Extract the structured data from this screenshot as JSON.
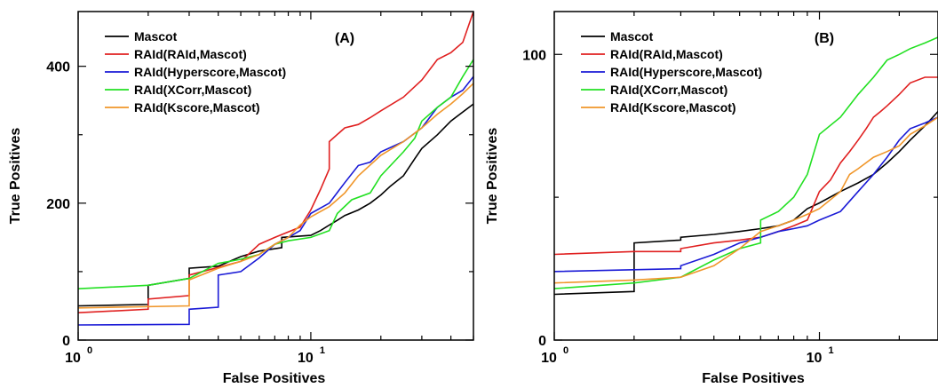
{
  "chart_data": [
    {
      "type": "line",
      "panel_label": "(A)",
      "xlabel": "False Positives",
      "ylabel": "True Positives",
      "xscale": "log",
      "xlim": [
        1,
        50
      ],
      "ylim": [
        0,
        480
      ],
      "xticks": [
        {
          "value": 1,
          "base": "10",
          "exp": "0"
        },
        {
          "value": 10,
          "base": "10",
          "exp": "1"
        }
      ],
      "yticks": [
        {
          "value": 0,
          "label": "0"
        },
        {
          "value": 200,
          "label": "200"
        },
        {
          "value": 400,
          "label": "400"
        }
      ],
      "legend_position": "top-left",
      "series": [
        {
          "name": "Mascot",
          "color": "#000000",
          "x": [
            1,
            2,
            2,
            3,
            3,
            4,
            5,
            6,
            7.5,
            7.5,
            10,
            11,
            12,
            13,
            14,
            16,
            18,
            20,
            22,
            25,
            28,
            30,
            35,
            40,
            50
          ],
          "y": [
            50,
            52,
            80,
            90,
            105,
            108,
            122,
            130,
            135,
            150,
            153,
            160,
            168,
            175,
            182,
            190,
            200,
            212,
            225,
            240,
            265,
            280,
            300,
            320,
            345
          ]
        },
        {
          "name": "RAId(RAId,Mascot)",
          "color": "#e02020",
          "x": [
            1,
            2,
            2,
            3,
            3,
            5,
            6,
            7,
            9,
            10,
            11,
            12,
            12,
            14,
            16,
            18,
            20,
            25,
            30,
            35,
            40,
            45,
            50
          ],
          "y": [
            40,
            45,
            60,
            65,
            95,
            115,
            140,
            150,
            165,
            190,
            220,
            250,
            290,
            310,
            315,
            325,
            335,
            355,
            380,
            410,
            420,
            435,
            480
          ]
        },
        {
          "name": "RAId(Hyperscore,Mascot)",
          "color": "#1a1ad6",
          "x": [
            1,
            3,
            3,
            4,
            4,
            5,
            6,
            7,
            8,
            9,
            10,
            12,
            14,
            16,
            18,
            20,
            25,
            30,
            35,
            40,
            45,
            50
          ],
          "y": [
            22,
            23,
            45,
            48,
            95,
            100,
            120,
            140,
            150,
            160,
            185,
            200,
            230,
            255,
            260,
            275,
            290,
            310,
            340,
            355,
            365,
            385
          ]
        },
        {
          "name": "RAId(XCorr,Mascot)",
          "color": "#22e022",
          "x": [
            1,
            2,
            3,
            4,
            5,
            6,
            7,
            8,
            10,
            12,
            13,
            15,
            18,
            20,
            25,
            28,
            30,
            35,
            40,
            45,
            50
          ],
          "y": [
            75,
            80,
            90,
            112,
            118,
            125,
            140,
            145,
            150,
            160,
            185,
            205,
            215,
            240,
            275,
            295,
            320,
            340,
            355,
            385,
            410
          ]
        },
        {
          "name": "RAId(Kscore,Mascot)",
          "color": "#f0962a",
          "x": [
            1,
            3,
            3,
            4,
            5,
            6,
            7,
            8,
            9,
            10,
            12,
            14,
            16,
            20,
            25,
            30,
            35,
            40,
            45,
            50
          ],
          "y": [
            47,
            50,
            88,
            105,
            115,
            125,
            140,
            150,
            168,
            180,
            195,
            215,
            240,
            270,
            290,
            310,
            330,
            345,
            360,
            375
          ]
        }
      ]
    },
    {
      "type": "line",
      "panel_label": "(B)",
      "xlabel": "False Positives",
      "ylabel": "True Positives",
      "xscale": "log",
      "xlim": [
        1,
        28
      ],
      "ylim": [
        0,
        115
      ],
      "xticks": [
        {
          "value": 1,
          "base": "10",
          "exp": "0"
        },
        {
          "value": 10,
          "base": "10",
          "exp": "1"
        }
      ],
      "yticks": [
        {
          "value": 0,
          "label": "0"
        },
        {
          "value": 100,
          "label": "100"
        }
      ],
      "legend_position": "top-left",
      "series": [
        {
          "name": "Mascot",
          "color": "#000000",
          "x": [
            1,
            2,
            2,
            3,
            3,
            4,
            5,
            6,
            7,
            8,
            9,
            10,
            12,
            14,
            16,
            18,
            20,
            22,
            25,
            28
          ],
          "y": [
            16,
            17,
            34,
            35,
            36,
            37,
            38,
            39,
            40,
            42,
            46,
            48,
            52,
            55,
            58,
            62,
            66,
            70,
            75,
            80
          ]
        },
        {
          "name": "RAId(RAId,Mascot)",
          "color": "#e02020",
          "x": [
            1,
            2,
            3,
            3,
            4,
            5,
            6,
            7,
            8,
            9,
            10,
            11,
            12,
            13,
            14,
            15,
            16,
            17,
            18,
            20,
            22,
            25,
            28
          ],
          "y": [
            30,
            31,
            31,
            32,
            34,
            35,
            36,
            38,
            40,
            42,
            52,
            56,
            62,
            66,
            70,
            74,
            78,
            80,
            82,
            86,
            90,
            92,
            92
          ]
        },
        {
          "name": "RAId(Hyperscore,Mascot)",
          "color": "#1a1ad6",
          "x": [
            1,
            3,
            3,
            4,
            5,
            6,
            7,
            8,
            9,
            10,
            12,
            14,
            16,
            18,
            20,
            22,
            25,
            28
          ],
          "y": [
            24,
            25,
            26,
            30,
            34,
            36,
            38,
            39,
            40,
            42,
            45,
            52,
            58,
            64,
            70,
            74,
            76,
            78
          ]
        },
        {
          "name": "RAId(XCorr,Mascot)",
          "color": "#22e022",
          "x": [
            1,
            2,
            3,
            4,
            5,
            6,
            6,
            7,
            8,
            9,
            10,
            12,
            14,
            16,
            18,
            20,
            22,
            25,
            28
          ],
          "y": [
            18,
            20,
            22,
            28,
            32,
            34,
            42,
            45,
            50,
            58,
            72,
            78,
            86,
            92,
            98,
            100,
            102,
            104,
            106
          ]
        },
        {
          "name": "RAId(Kscore,Mascot)",
          "color": "#f0962a",
          "x": [
            1,
            2,
            3,
            4,
            5,
            6,
            7,
            8,
            9,
            10,
            12,
            13,
            14,
            16,
            18,
            20,
            22,
            25,
            28
          ],
          "y": [
            20,
            21,
            22,
            26,
            32,
            38,
            40,
            42,
            44,
            46,
            52,
            58,
            60,
            64,
            66,
            68,
            72,
            75,
            78
          ]
        }
      ]
    }
  ]
}
